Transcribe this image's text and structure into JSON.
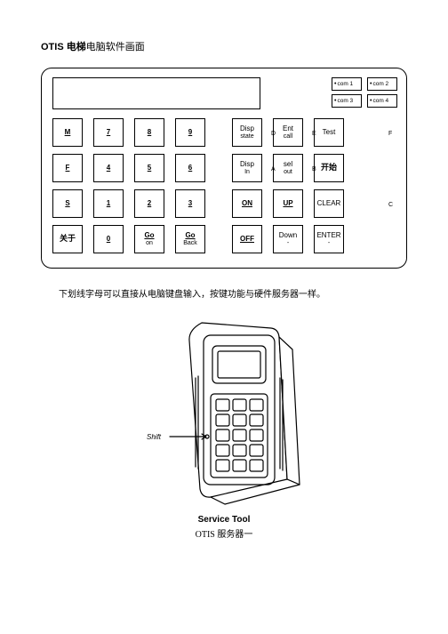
{
  "title": {
    "bold": "OTIS 电梯",
    "rest": "电脑软件画面"
  },
  "panel": {
    "border_color": "#000000",
    "background": "#ffffff",
    "com_buttons": [
      "com 1",
      "com 2",
      "com 3",
      "com 4"
    ],
    "side_letters": {
      "r1c6": "D",
      "r1c7": "E",
      "r1c8": "F",
      "r2c6": "A",
      "r2c7": "B",
      "r3c8": "C"
    },
    "keys": [
      [
        {
          "t": "M",
          "u": 1
        },
        {
          "t": "7",
          "u": 1
        },
        {
          "t": "8",
          "u": 1
        },
        {
          "t": "9",
          "u": 1
        },
        null,
        {
          "t": "Disp",
          "b": "state",
          "u": 0
        },
        {
          "t": "Ent",
          "b": "call",
          "u": 0
        },
        {
          "t": "Test",
          "u": 0
        }
      ],
      [
        {
          "t": "F",
          "u": 1
        },
        {
          "t": "4",
          "u": 1
        },
        {
          "t": "5",
          "u": 1
        },
        {
          "t": "6",
          "u": 1
        },
        null,
        {
          "t": "Disp",
          "b": "In",
          "u": 0
        },
        {
          "t": "sel",
          "b": "out",
          "u": 0
        },
        {
          "cn": "开始"
        }
      ],
      [
        {
          "t": "S",
          "u": 1
        },
        {
          "t": "1",
          "u": 1
        },
        {
          "t": "2",
          "u": 1
        },
        {
          "t": "3",
          "u": 1
        },
        null,
        {
          "t": "ON",
          "u": 1
        },
        {
          "t": "UP",
          "u": 1
        },
        {
          "t": "CLEAR",
          "u": 0
        }
      ],
      [
        {
          "cn": "关于"
        },
        {
          "t": "0",
          "u": 1
        },
        {
          "t": "Go",
          "b": "on",
          "tu": 1
        },
        {
          "t": "Go",
          "b": "Back",
          "tu": 1
        },
        null,
        {
          "t": "OFF",
          "u": 1
        },
        {
          "t": "Down",
          "b": "-",
          "u": 0
        },
        {
          "t": "ENTER",
          "b": "-",
          "u": 0
        }
      ]
    ]
  },
  "note": "下划线字母可以直接从电脑键盘输入，按键功能与硬件服务器一样。",
  "device": {
    "shift_label": "Shift",
    "caption_en": "Service Tool",
    "caption_cn": "OTIS 服务器一",
    "stroke": "#000000",
    "fill": "#ffffff"
  }
}
